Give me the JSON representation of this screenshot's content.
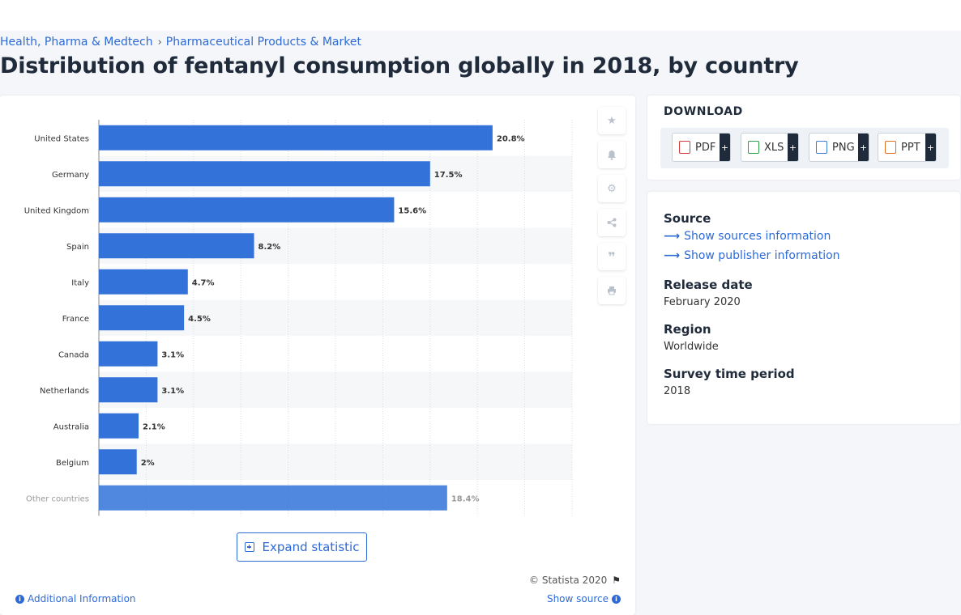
{
  "breadcrumb": {
    "items": [
      "Health, Pharma & Medtech",
      "Pharmaceutical Products & Market"
    ]
  },
  "page_title": "Distribution of fentanyl consumption globally in 2018, by country",
  "chart_data": {
    "type": "bar",
    "orientation": "horizontal",
    "categories": [
      "United States",
      "Germany",
      "United Kingdom",
      "Spain",
      "Italy",
      "France",
      "Canada",
      "Netherlands",
      "Australia",
      "Belgium",
      "Other countries"
    ],
    "values": [
      20.8,
      17.5,
      15.6,
      8.2,
      4.7,
      4.5,
      3.1,
      3.1,
      2.1,
      2,
      18.4
    ],
    "value_labels": [
      "20.8%",
      "17.5%",
      "15.6%",
      "8.2%",
      "4.7%",
      "4.5%",
      "3.1%",
      "3.1%",
      "2.1%",
      "2%",
      "18.4%"
    ],
    "xlim": [
      0,
      25
    ],
    "grid": true,
    "colors": {
      "bar": "#3373d9",
      "band": "#f6f7f9",
      "grid": "#d8dde3",
      "axis": "#888888"
    }
  },
  "toolbar": {
    "icons": [
      "star-icon",
      "bell-icon",
      "gear-icon",
      "share-icon",
      "quote-icon",
      "print-icon"
    ]
  },
  "expand_label": "Expand statistic",
  "copyright": "© Statista 2020",
  "additional_info": "Additional Information",
  "show_source": "Show source",
  "download": {
    "title": "DOWNLOAD",
    "buttons": [
      {
        "label": "PDF",
        "color": "#d73a3a"
      },
      {
        "label": "XLS",
        "color": "#2f9e49"
      },
      {
        "label": "PNG",
        "color": "#3a7bd5"
      },
      {
        "label": "PPT",
        "color": "#e0701f"
      }
    ],
    "plus": "+"
  },
  "info": {
    "source_heading": "Source",
    "show_sources": "Show sources information",
    "show_publisher": "Show publisher information",
    "release_heading": "Release date",
    "release_value": "February 2020",
    "region_heading": "Region",
    "region_value": "Worldwide",
    "survey_heading": "Survey time period",
    "survey_value": "2018"
  }
}
